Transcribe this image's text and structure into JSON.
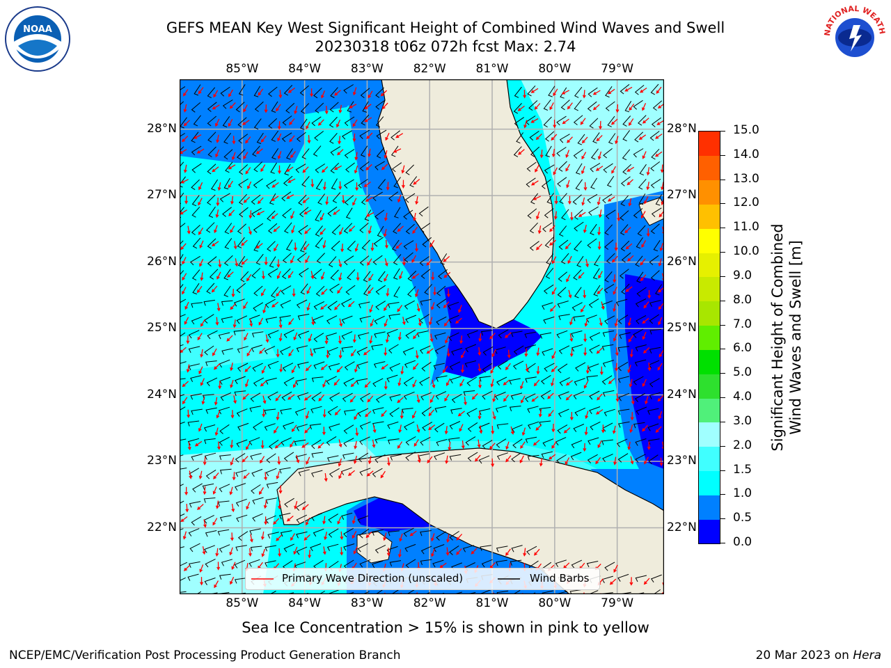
{
  "title": {
    "line1": "GEFS MEAN Key West Significant Height of Combined Wind Waves and Swell",
    "line2": "20230318 t06z 072h fcst   Max: 2.74"
  },
  "logos": {
    "noaa_text": "NOAA",
    "nws_text": "NATIONAL WEATHER SERVICE"
  },
  "map": {
    "lon_ticks": [
      "85°W",
      "84°W",
      "83°W",
      "82°W",
      "81°W",
      "80°W",
      "79°W"
    ],
    "lon_values": [
      -85,
      -84,
      -83,
      -82,
      -81,
      -80,
      -79
    ],
    "lat_ticks": [
      "28°N",
      "27°N",
      "26°N",
      "25°N",
      "24°N",
      "23°N",
      "22°N"
    ],
    "lat_values": [
      28,
      27,
      26,
      25,
      24,
      23,
      22
    ],
    "lon_range": [
      -86,
      -78.25
    ],
    "lat_range": [
      21,
      28.75
    ],
    "colors": {
      "land": "#efecdc",
      "grid": "#b0b0b0",
      "wave_arrow": "#ff0000",
      "wind_barb": "#000000"
    }
  },
  "colorbar": {
    "label_line1": "Significant Height of Combined",
    "label_line2": "Wind Waves and Swell [m]",
    "ticks": [
      "0.0",
      "0.5",
      "1.0",
      "1.5",
      "2.0",
      "3.0",
      "4.0",
      "5.0",
      "6.0",
      "7.0",
      "8.0",
      "9.0",
      "10.0",
      "11.0",
      "12.0",
      "13.0",
      "14.0",
      "15.0"
    ],
    "colors": [
      "#0000ff",
      "#0080ff",
      "#00ffff",
      "#40ffff",
      "#a0ffff",
      "#50f07a",
      "#2ee02e",
      "#00e000",
      "#60ee00",
      "#a8e600",
      "#c8ea00",
      "#e6f000",
      "#ffff00",
      "#ffc000",
      "#ff9000",
      "#ff6000",
      "#ff3000",
      "#ff0000"
    ]
  },
  "legend": {
    "wave_label": "Primary Wave Direction (unscaled)",
    "wind_label": "Wind Barbs"
  },
  "footer": {
    "note": "Sea Ice Concentration > 15% is shown in pink to yellow",
    "left": "NCEP/EMC/Verification Post Processing Product Generation Branch",
    "right_prefix": "20 Mar 2023 on ",
    "right_host": "Hera"
  }
}
